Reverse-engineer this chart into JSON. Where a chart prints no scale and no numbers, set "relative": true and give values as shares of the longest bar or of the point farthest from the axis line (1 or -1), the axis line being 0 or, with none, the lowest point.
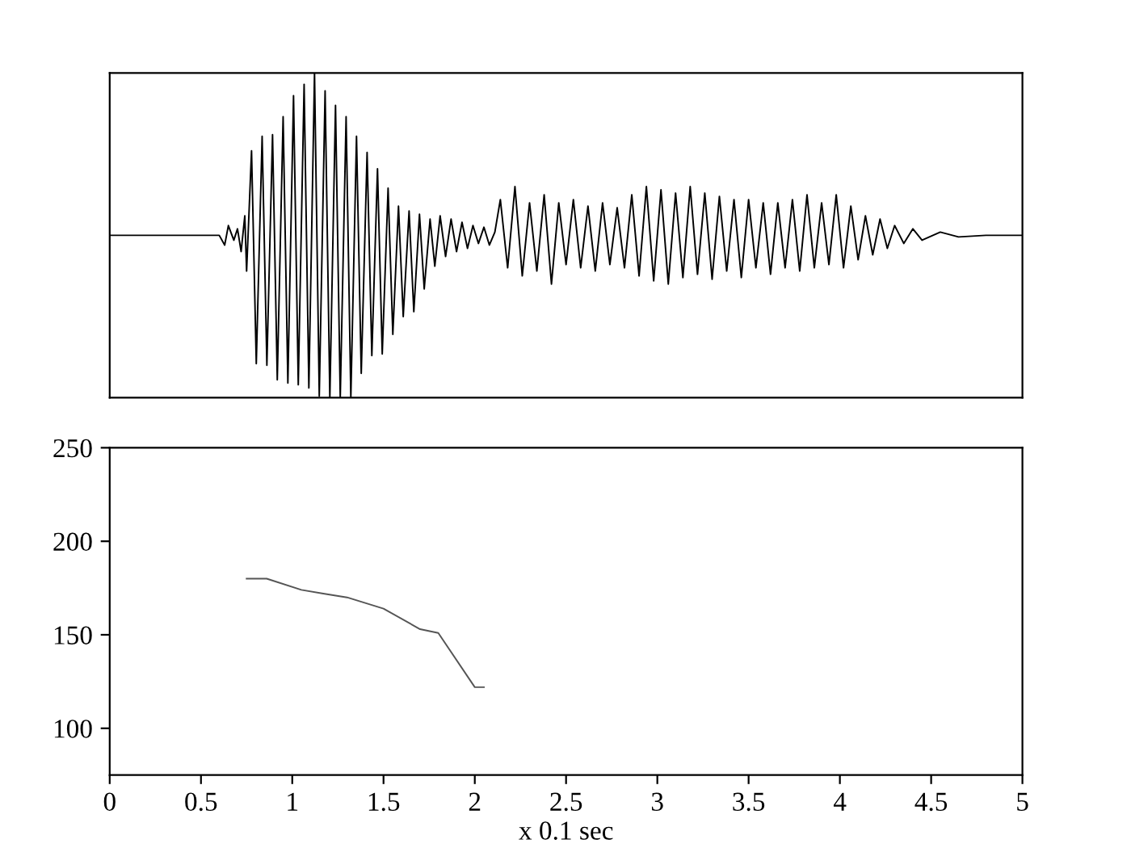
{
  "chart_data": [
    {
      "type": "line",
      "relative": true,
      "xlim": [
        0,
        5
      ],
      "tick_labels": false,
      "grid": false,
      "series": [
        {
          "color": "#000000",
          "x": [
            0,
            0.6,
            0.63,
            0.65,
            0.68,
            0.7,
            0.72,
            0.74,
            0.75,
            0.777,
            0.803,
            0.835,
            0.861,
            0.892,
            0.918,
            0.95,
            0.976,
            1.007,
            1.033,
            1.065,
            1.091,
            1.122,
            1.148,
            1.18,
            1.206,
            1.237,
            1.263,
            1.295,
            1.321,
            1.352,
            1.378,
            1.41,
            1.436,
            1.467,
            1.493,
            1.525,
            1.551,
            1.582,
            1.608,
            1.64,
            1.666,
            1.697,
            1.723,
            1.755,
            1.781,
            1.81,
            1.84,
            1.87,
            1.9,
            1.93,
            1.96,
            1.99,
            2.02,
            2.05,
            2.08,
            2.11,
            2.14,
            2.18,
            2.22,
            2.26,
            2.3,
            2.34,
            2.38,
            2.42,
            2.46,
            2.5,
            2.54,
            2.58,
            2.62,
            2.66,
            2.7,
            2.74,
            2.78,
            2.82,
            2.86,
            2.9,
            2.94,
            2.98,
            3.02,
            3.06,
            3.1,
            3.14,
            3.18,
            3.22,
            3.26,
            3.3,
            3.34,
            3.38,
            3.42,
            3.46,
            3.5,
            3.54,
            3.58,
            3.62,
            3.66,
            3.7,
            3.74,
            3.78,
            3.82,
            3.86,
            3.9,
            3.94,
            3.98,
            4.02,
            4.06,
            4.1,
            4.14,
            4.18,
            4.22,
            4.26,
            4.3,
            4.35,
            4.4,
            4.45,
            4.55,
            4.65,
            4.8,
            5
          ],
          "values": [
            0.5,
            0.5,
            0.47,
            0.53,
            0.485,
            0.52,
            0.45,
            0.56,
            0.39,
            0.76,
            0.105,
            0.805,
            0.1,
            0.81,
            0.055,
            0.865,
            0.045,
            0.93,
            0.04,
            0.965,
            0.03,
            1,
            0.005,
            0.945,
            0,
            0.9,
            0,
            0.865,
            0,
            0.805,
            0.075,
            0.755,
            0.13,
            0.705,
            0.135,
            0.645,
            0.195,
            0.59,
            0.25,
            0.575,
            0.265,
            0.565,
            0.335,
            0.55,
            0.405,
            0.56,
            0.435,
            0.55,
            0.45,
            0.54,
            0.46,
            0.53,
            0.475,
            0.525,
            0.47,
            0.51,
            0.61,
            0.4,
            0.65,
            0.375,
            0.6,
            0.39,
            0.625,
            0.35,
            0.6,
            0.41,
            0.61,
            0.4,
            0.59,
            0.39,
            0.6,
            0.41,
            0.585,
            0.4,
            0.625,
            0.375,
            0.65,
            0.36,
            0.64,
            0.35,
            0.63,
            0.37,
            0.65,
            0.38,
            0.63,
            0.365,
            0.62,
            0.39,
            0.61,
            0.37,
            0.61,
            0.4,
            0.6,
            0.38,
            0.6,
            0.4,
            0.61,
            0.39,
            0.625,
            0.4,
            0.6,
            0.41,
            0.625,
            0.4,
            0.59,
            0.425,
            0.56,
            0.44,
            0.55,
            0.46,
            0.53,
            0.475,
            0.52,
            0.485,
            0.51,
            0.495,
            0.5,
            0.5
          ]
        }
      ]
    },
    {
      "type": "line",
      "xlabel": "x 0.1 sec",
      "xlim": [
        0,
        5
      ],
      "ylim": [
        75,
        250
      ],
      "xticks": [
        0,
        0.5,
        1,
        1.5,
        2,
        2.5,
        3,
        3.5,
        4,
        4.5,
        5
      ],
      "yticks": [
        100,
        150,
        200,
        250
      ],
      "grid": false,
      "series": [
        {
          "color": "#555555",
          "x": [
            0.75,
            0.86,
            1.05,
            1.17,
            1.3,
            1.5,
            1.7,
            1.8,
            2.0,
            2.05
          ],
          "values": [
            180,
            180,
            174,
            172,
            170,
            164,
            153,
            151,
            122,
            122
          ]
        }
      ]
    }
  ]
}
